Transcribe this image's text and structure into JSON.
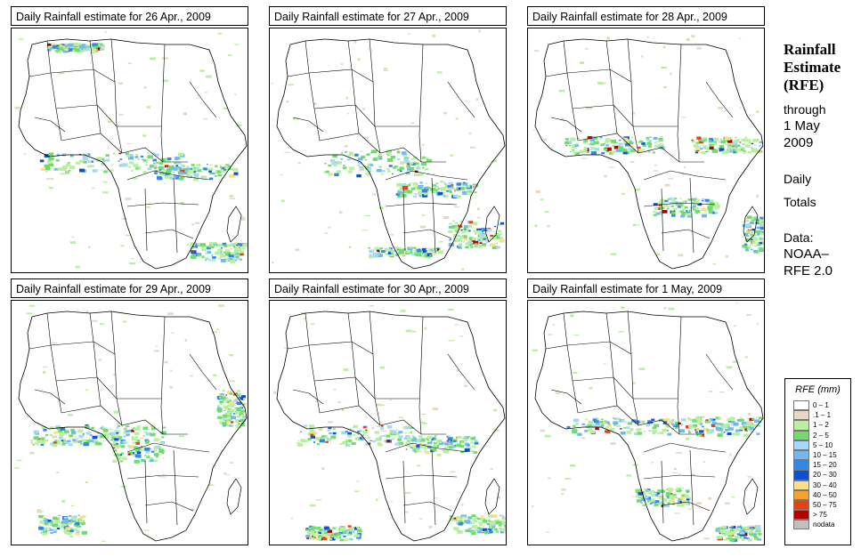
{
  "panels": [
    {
      "title": "Daily Rainfall estimate for  26 Apr., 2009"
    },
    {
      "title": "Daily Rainfall estimate for  27 Apr., 2009"
    },
    {
      "title": "Daily Rainfall estimate for  28 Apr., 2009"
    },
    {
      "title": "Daily Rainfall estimate for  29 Apr., 2009"
    },
    {
      "title": "Daily Rainfall estimate for  30 Apr., 2009"
    },
    {
      "title": "Daily Rainfall estimate for  1 May, 2009"
    }
  ],
  "side": {
    "heading_1": "Rainfall",
    "heading_2": "Estimate",
    "heading_3": "(RFE)",
    "through": "through",
    "date_1": "1 May",
    "date_2": "2009",
    "daily": "Daily",
    "totals": "Totals",
    "data_label": "Data:",
    "source_1": "NOAA–",
    "source_2": "RFE 2.0"
  },
  "legend": {
    "title": "RFE (mm)",
    "items": [
      {
        "label": "0 – 1",
        "color": "#ffffff"
      },
      {
        "label": ".1 – 1",
        "color": "#e8d8c0"
      },
      {
        "label": "1 – 2",
        "color": "#b8f0a0"
      },
      {
        "label": "2 – 5",
        "color": "#70dc70"
      },
      {
        "label": "5 – 10",
        "color": "#a8d8f8"
      },
      {
        "label": "10 – 15",
        "color": "#70b8f0"
      },
      {
        "label": "15 – 20",
        "color": "#3088e8"
      },
      {
        "label": "20 – 30",
        "color": "#1050d0"
      },
      {
        "label": "30 – 40",
        "color": "#ffe080"
      },
      {
        "label": "40 – 50",
        "color": "#f8a030"
      },
      {
        "label": "50 – 75",
        "color": "#e84010"
      },
      {
        "label": "> 75",
        "color": "#b00000"
      },
      {
        "label": "nodata",
        "color": "#c0c0c0"
      }
    ]
  }
}
